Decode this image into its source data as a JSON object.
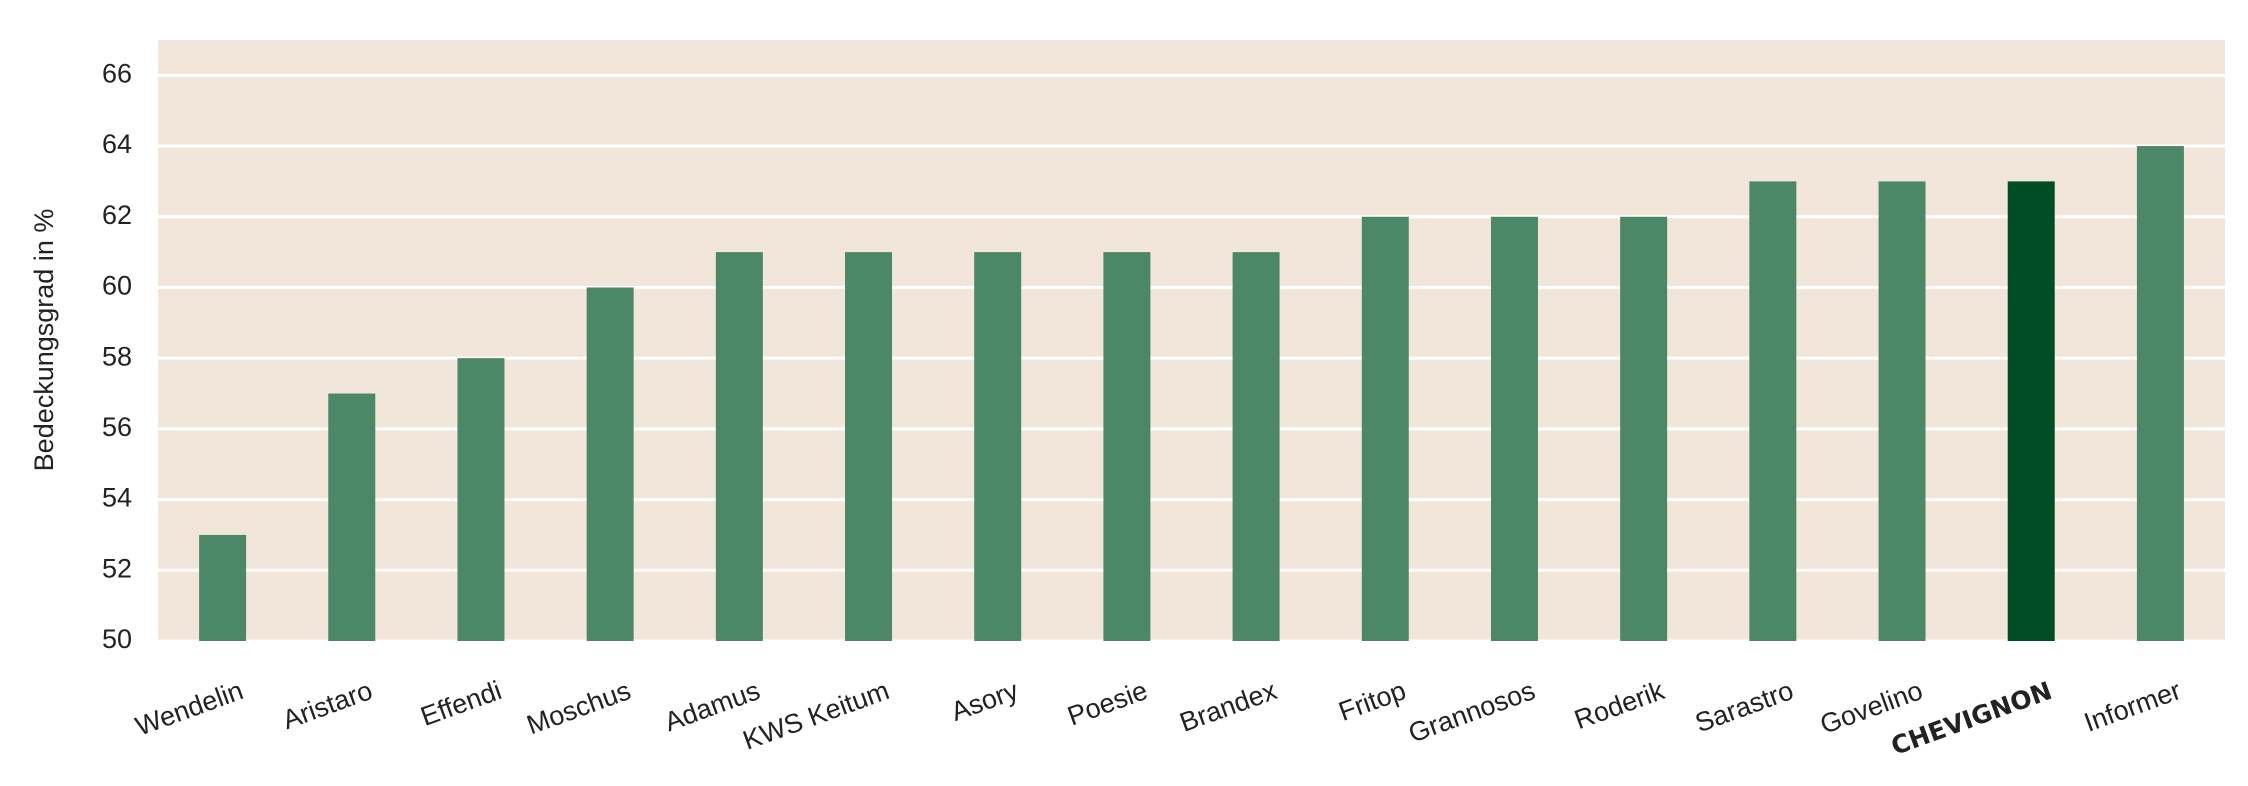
{
  "chart_data": {
    "type": "bar",
    "y_label": "Bedeckungsgrad in %",
    "categories": [
      "Wendelin",
      "Aristaro",
      "Effendi",
      "Moschus",
      "Adamus",
      "KWS Keitum",
      "Asory",
      "Poesie",
      "Brandex",
      "Fritop",
      "Grannosos",
      "Roderik",
      "Sarastro",
      "Govelino",
      "CHEVIGNON",
      "Informer"
    ],
    "values": [
      53,
      57,
      58,
      60,
      61,
      61,
      61,
      61,
      61,
      62,
      62,
      62,
      63,
      63,
      63,
      64
    ],
    "colors": [
      "#4c8868",
      "#4c8868",
      "#4c8868",
      "#4c8868",
      "#4c8868",
      "#4c8868",
      "#4c8868",
      "#4c8868",
      "#4c8868",
      "#4c8868",
      "#4c8868",
      "#4c8868",
      "#4c8868",
      "#4c8868",
      "#004d25",
      "#4c8868"
    ],
    "highlight_color": "#004d25",
    "background": "#f2e6da",
    "ylim": [
      50,
      67
    ],
    "yticks": [
      50,
      52,
      54,
      56,
      58,
      60,
      62,
      64,
      66
    ],
    "grid": true
  }
}
